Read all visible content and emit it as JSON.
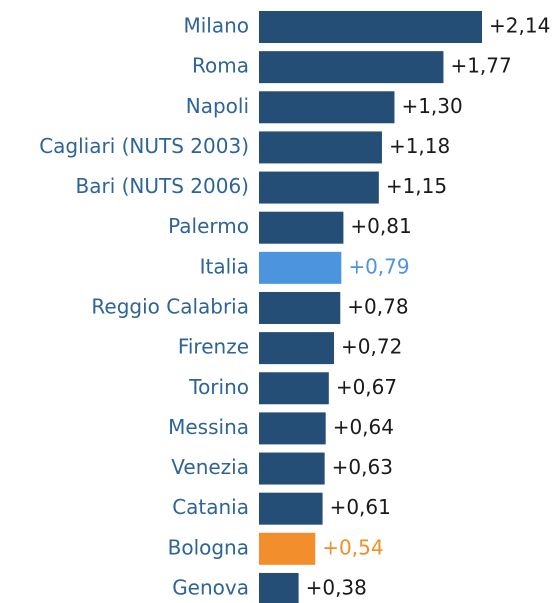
{
  "chart_data": {
    "type": "hbar",
    "categories": [
      "Milano",
      "Roma",
      "Napoli",
      "Cagliari (NUTS 2003)",
      "Bari (NUTS 2006)",
      "Palermo",
      "Italia",
      "Reggio Calabria",
      "Firenze",
      "Torino",
      "Messina",
      "Venezia",
      "Catania",
      "Bologna",
      "Genova"
    ],
    "values": [
      2.14,
      1.77,
      1.3,
      1.18,
      1.15,
      0.81,
      0.79,
      0.78,
      0.72,
      0.67,
      0.64,
      0.63,
      0.61,
      0.54,
      0.38
    ],
    "value_labels": [
      "+2,14",
      "+1,77",
      "+1,30",
      "+1,18",
      "+1,15",
      "+0,81",
      "+0,79",
      "+0,78",
      "+0,72",
      "+0,67",
      "+0,64",
      "+0,63",
      "+0,61",
      "+0,54",
      "+0,38"
    ],
    "colors": [
      "#254e77",
      "#254e77",
      "#254e77",
      "#254e77",
      "#254e77",
      "#254e77",
      "#4c94de",
      "#254e77",
      "#254e77",
      "#254e77",
      "#254e77",
      "#254e77",
      "#254e77",
      "#f28e2b",
      "#254e77"
    ]
  }
}
